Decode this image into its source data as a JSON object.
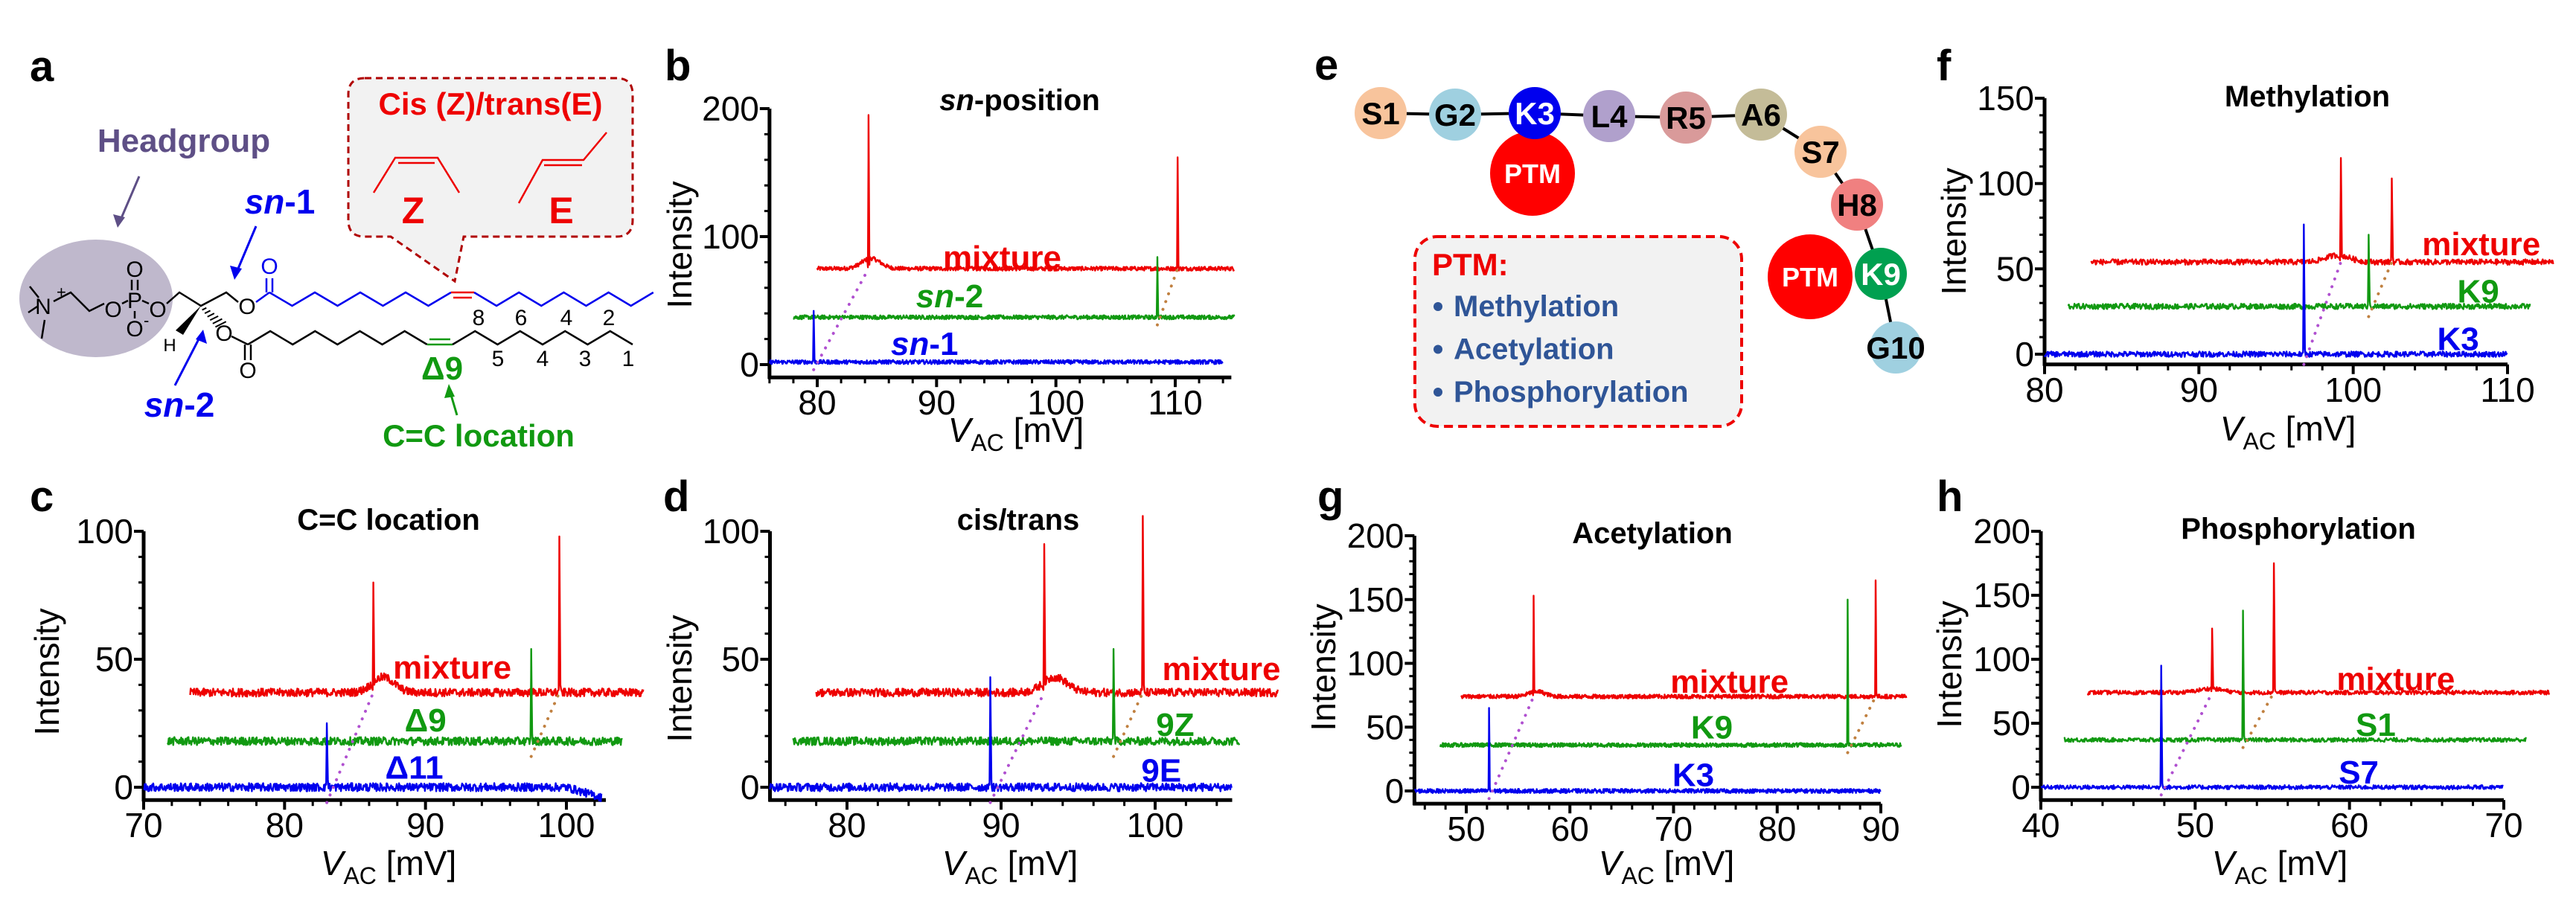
{
  "panel_letters": {
    "a": "a",
    "b": "b",
    "c": "c",
    "d": "d",
    "e": "e",
    "f": "f",
    "g": "g",
    "h": "h"
  },
  "panel_a": {
    "headgroup": "Headgroup",
    "sn1": "sn-1",
    "sn2": "sn-2",
    "callout_title": "Cis (Z)/trans(E)",
    "z_label": "Z",
    "e_label": "E",
    "delta9": "Δ9",
    "cc_location": "C=C location",
    "atoms": {
      "N": "N",
      "plus": "+",
      "P": "P",
      "O": "O",
      "Ominus": "O",
      "minus": "-",
      "H": "H"
    },
    "numbers_top": [
      "8",
      "6",
      "4",
      "2"
    ],
    "numbers_bottom": [
      "5",
      "4",
      "3",
      "1"
    ],
    "colors": {
      "headgroup": "#5e4f86",
      "headgroup_fill": "#bfb8cc",
      "sn": "#0000ee",
      "cistrans": "#ee0000",
      "cc": "#119911"
    }
  },
  "panel_e": {
    "residues": [
      {
        "label": "S1",
        "color": "#f8c49c",
        "text": "#000000"
      },
      {
        "label": "G2",
        "color": "#9fd0e0",
        "text": "#000000"
      },
      {
        "label": "K3",
        "color": "#0000ee",
        "text": "#ffffff"
      },
      {
        "label": "L4",
        "color": "#b0a0cc",
        "text": "#000000"
      },
      {
        "label": "R5",
        "color": "#d99a9a",
        "text": "#000000"
      },
      {
        "label": "A6",
        "color": "#c4bc98",
        "text": "#000000"
      },
      {
        "label": "S7",
        "color": "#f8c49c",
        "text": "#000000"
      },
      {
        "label": "H8",
        "color": "#f08080",
        "text": "#000000"
      },
      {
        "label": "K9",
        "color": "#00a050",
        "text": "#ffffff"
      },
      {
        "label": "G10",
        "color": "#9fd0e0",
        "text": "#000000"
      }
    ],
    "ptm_badge": "PTM",
    "ptm_color": "#ff0000",
    "box_title": "PTM:",
    "box_items": [
      "Methylation",
      "Acetylation",
      "Phosphorylation"
    ],
    "box_item_color": "#2f5597"
  },
  "chart_data": [
    {
      "id": "b",
      "type": "line",
      "title": "sn-position",
      "ylabel": "Intensity",
      "xlabel": {
        "var": "V",
        "sub": "AC",
        "unit": " [mV]"
      },
      "xlim": [
        76,
        114.7
      ],
      "ylim": [
        -10,
        200
      ],
      "xticks": [
        80,
        90,
        100,
        110
      ],
      "yticks": [
        0,
        100,
        200
      ],
      "series": [
        {
          "name": "mixture",
          "color": "#ee0000",
          "baseline": 75,
          "x_range": [
            80,
            115
          ],
          "hump": {
            "x": 84.5,
            "height": 8
          },
          "peaks": [
            {
              "x": 84.3,
              "y": 195
            },
            {
              "x": 110.2,
              "y": 162
            }
          ]
        },
        {
          "name": "sn-2",
          "color": "#119911",
          "baseline": 37,
          "x_range": [
            78,
            115
          ],
          "peaks": [
            {
              "x": 108.5,
              "y": 84,
              "shifts_to": 110.2
            }
          ]
        },
        {
          "name": "sn-1",
          "color": "#0000ee",
          "baseline": 2,
          "x_range": [
            76,
            114
          ],
          "peaks": [
            {
              "x": 79.7,
              "y": 42,
              "shifts_to": 84.3
            }
          ]
        }
      ]
    },
    {
      "id": "c",
      "type": "line",
      "title": "C=C location",
      "ylabel": "Intensity",
      "xlabel": {
        "var": "V",
        "sub": "AC",
        "unit": " [mV]"
      },
      "xlim": [
        70,
        102.8
      ],
      "ylim": [
        -5,
        100
      ],
      "xticks": [
        70,
        80,
        90,
        100
      ],
      "yticks": [
        0,
        50,
        100
      ],
      "series": [
        {
          "name": "mixture",
          "color": "#ee0000",
          "baseline": 37,
          "x_range": [
            73.3,
            105.5
          ],
          "hump": {
            "x": 87,
            "height": 6
          },
          "peaks": [
            {
              "x": 86.3,
              "y": 80
            },
            {
              "x": 99.5,
              "y": 98
            }
          ]
        },
        {
          "name": "Δ9",
          "color": "#119911",
          "baseline": 18,
          "x_range": [
            71.7,
            104
          ],
          "peaks": [
            {
              "x": 97.5,
              "y": 54,
              "shifts_to": 99.5
            }
          ]
        },
        {
          "name": "Δ11",
          "color": "#0000ee",
          "baseline": 0,
          "x_range": [
            70,
            102.5
          ],
          "peaks": [
            {
              "x": 83,
              "y": 25,
              "shifts_to": 86.3
            }
          ]
        }
      ]
    },
    {
      "id": "d",
      "type": "line",
      "title": "cis/trans",
      "ylabel": "Intensity",
      "xlabel": {
        "var": "V",
        "sub": "AC",
        "unit": " [mV]"
      },
      "xlim": [
        75,
        105
      ],
      "ylim": [
        -5,
        100
      ],
      "xticks": [
        80,
        90,
        100
      ],
      "yticks": [
        0,
        50,
        100
      ],
      "series": [
        {
          "name": "mixture",
          "color": "#ee0000",
          "baseline": 37,
          "x_range": [
            78,
            108
          ],
          "hump": {
            "x": 93.5,
            "height": 6
          },
          "peaks": [
            {
              "x": 92.8,
              "y": 95
            },
            {
              "x": 99.2,
              "y": 106
            }
          ]
        },
        {
          "name": "9Z",
          "color": "#119911",
          "baseline": 18,
          "x_range": [
            76.5,
            105.5
          ],
          "peaks": [
            {
              "x": 97.3,
              "y": 54,
              "shifts_to": 99.2
            }
          ]
        },
        {
          "name": "9E",
          "color": "#0000ee",
          "baseline": 0,
          "x_range": [
            75,
            105
          ],
          "peaks": [
            {
              "x": 89.3,
              "y": 43,
              "shifts_to": 92.8
            }
          ]
        }
      ]
    },
    {
      "id": "f",
      "type": "line",
      "title": "Methylation",
      "ylabel": "Intensity",
      "xlabel": {
        "var": "V",
        "sub": "AC",
        "unit": " [mV]"
      },
      "xlim": [
        80,
        110
      ],
      "ylim": [
        -6,
        150
      ],
      "xticks": [
        80,
        90,
        100,
        110
      ],
      "yticks": [
        0,
        50,
        100,
        150
      ],
      "series": [
        {
          "name": "mixture",
          "color": "#ee0000",
          "baseline": 54,
          "x_range": [
            83,
            113
          ],
          "hump": {
            "x": 99,
            "height": 4
          },
          "peaks": [
            {
              "x": 99.2,
              "y": 115
            },
            {
              "x": 102.5,
              "y": 103
            }
          ]
        },
        {
          "name": "K9",
          "color": "#119911",
          "baseline": 28,
          "x_range": [
            81.5,
            111.5
          ],
          "peaks": [
            {
              "x": 101,
              "y": 70,
              "shifts_to": 102.5
            }
          ]
        },
        {
          "name": "K3",
          "color": "#0000ee",
          "baseline": 0,
          "x_range": [
            80,
            110
          ],
          "peaks": [
            {
              "x": 96.8,
              "y": 76,
              "shifts_to": 99.2
            }
          ]
        }
      ]
    },
    {
      "id": "g",
      "type": "line",
      "title": "Acetylation",
      "ylabel": "Intensity",
      "xlabel": {
        "var": "V",
        "sub": "AC",
        "unit": " [mV]"
      },
      "xlim": [
        45,
        90
      ],
      "ylim": [
        -10,
        200
      ],
      "xticks": [
        50,
        60,
        70,
        80,
        90
      ],
      "yticks": [
        0,
        50,
        100,
        150,
        200
      ],
      "series": [
        {
          "name": "mixture",
          "color": "#ee0000",
          "baseline": 74,
          "x_range": [
            49.5,
            92.5
          ],
          "hump": {
            "x": 56.8,
            "height": 4
          },
          "peaks": [
            {
              "x": 56.5,
              "y": 153
            },
            {
              "x": 89.5,
              "y": 165
            }
          ]
        },
        {
          "name": "K9",
          "color": "#119911",
          "baseline": 36,
          "x_range": [
            47.5,
            92
          ],
          "peaks": [
            {
              "x": 86.8,
              "y": 150,
              "shifts_to": 89.5
            }
          ]
        },
        {
          "name": "K3",
          "color": "#0000ee",
          "baseline": 0,
          "x_range": [
            45,
            90
          ],
          "peaks": [
            {
              "x": 52.2,
              "y": 65,
              "shifts_to": 56.5
            }
          ]
        }
      ]
    },
    {
      "id": "h",
      "type": "line",
      "title": "Phosphorylation",
      "ylabel": "Intensity",
      "xlabel": {
        "var": "V",
        "sub": "AC",
        "unit": " [mV]"
      },
      "xlim": [
        40,
        70
      ],
      "ylim": [
        -10,
        200
      ],
      "xticks": [
        40,
        50,
        60,
        70
      ],
      "yticks": [
        0,
        50,
        100,
        150,
        200
      ],
      "series": [
        {
          "name": "mixture",
          "color": "#ee0000",
          "baseline": 74,
          "x_range": [
            43,
            73
          ],
          "hump": {
            "x": 51,
            "height": 3
          },
          "peaks": [
            {
              "x": 51.1,
              "y": 124
            },
            {
              "x": 55.1,
              "y": 175
            }
          ]
        },
        {
          "name": "S1",
          "color": "#119911",
          "baseline": 37,
          "x_range": [
            41.5,
            71.5
          ],
          "peaks": [
            {
              "x": 53.1,
              "y": 138,
              "shifts_to": 55.1
            }
          ]
        },
        {
          "name": "S7",
          "color": "#0000ee",
          "baseline": 0,
          "x_range": [
            40,
            70
          ],
          "peaks": [
            {
              "x": 47.8,
              "y": 95,
              "shifts_to": 51.1
            }
          ]
        }
      ]
    }
  ]
}
